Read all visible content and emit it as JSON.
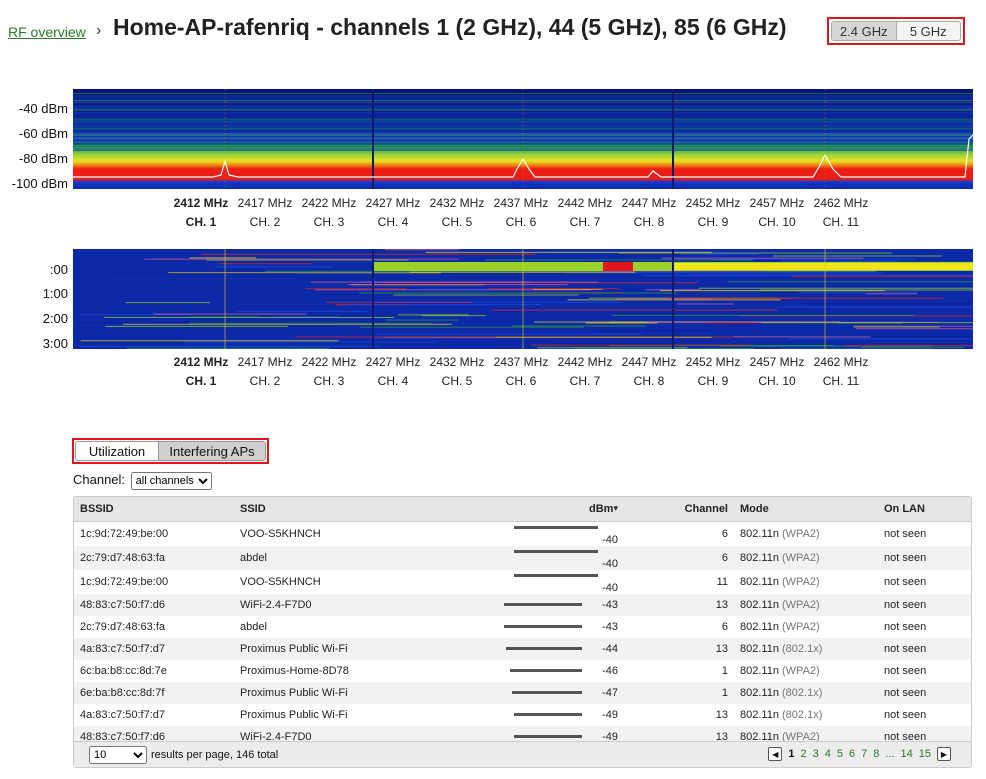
{
  "header": {
    "breadcrumb": "RF overview",
    "breadcrumb_sep": "›",
    "title": "Home-AP-rafenriq - channels 1 (2 GHz), 44 (5 GHz), 85 (6 GHz)",
    "band_buttons": [
      "2.4 GHz",
      "5 GHz"
    ]
  },
  "spectrum": {
    "dbm_labels": [
      "-40 dBm",
      "-60 dBm",
      "-80 dBm",
      "-100 dBm"
    ],
    "frequencies": [
      "2412 MHz",
      "2417 MHz",
      "2422 MHz",
      "2427 MHz",
      "2432 MHz",
      "2437 MHz",
      "2442 MHz",
      "2447 MHz",
      "2452 MHz",
      "2457 MHz",
      "2462 MHz"
    ],
    "channels": [
      "CH. 1",
      "CH. 2",
      "CH. 3",
      "CH. 4",
      "CH. 5",
      "CH. 6",
      "CH. 7",
      "CH. 8",
      "CH. 9",
      "CH. 10",
      "CH. 11"
    ]
  },
  "waterfall": {
    "time_labels": [
      ":00",
      "1:00",
      "2:00",
      "3:00"
    ]
  },
  "subtabs": [
    "Utilization",
    "Interfering APs"
  ],
  "filter": {
    "label": "Channel:",
    "value": "all channels"
  },
  "table": {
    "headers": {
      "bssid": "BSSID",
      "ssid": "SSID",
      "dbm": "dBm",
      "sort_arrow": "▾",
      "channel": "Channel",
      "mode": "Mode",
      "on_lan": "On LAN"
    },
    "rows": [
      {
        "bssid": "1c:9d:72:49:be:00",
        "ssid": "VOO-S5KHNCH",
        "dbm": "-40",
        "channel": "6",
        "mode": "802.11n",
        "sec": "(WPA2)",
        "on_lan": "not seen"
      },
      {
        "bssid": "2c:79:d7:48:63:fa",
        "ssid": "abdel",
        "dbm": "-40",
        "channel": "6",
        "mode": "802.11n",
        "sec": "(WPA2)",
        "on_lan": "not seen"
      },
      {
        "bssid": "1c:9d:72:49:be:00",
        "ssid": "VOO-S5KHNCH",
        "dbm": "-40",
        "channel": "11",
        "mode": "802.11n",
        "sec": "(WPA2)",
        "on_lan": "not seen"
      },
      {
        "bssid": "48:83:c7:50:f7:d6",
        "ssid": "WiFi-2.4-F7D0",
        "dbm": "-43",
        "channel": "13",
        "mode": "802.11n",
        "sec": "(WPA2)",
        "on_lan": "not seen"
      },
      {
        "bssid": "2c:79:d7:48:63:fa",
        "ssid": "abdel",
        "dbm": "-43",
        "channel": "6",
        "mode": "802.11n",
        "sec": "(WPA2)",
        "on_lan": "not seen"
      },
      {
        "bssid": "4a:83:c7:50:f7:d7",
        "ssid": "Proximus Public Wi-Fi",
        "dbm": "-44",
        "channel": "13",
        "mode": "802.11n",
        "sec": "(802.1x)",
        "on_lan": "not seen"
      },
      {
        "bssid": "6c:ba:b8:cc:8d:7e",
        "ssid": "Proximus-Home-8D78",
        "dbm": "-46",
        "channel": "1",
        "mode": "802.11n",
        "sec": "(WPA2)",
        "on_lan": "not seen"
      },
      {
        "bssid": "6e:ba:b8:cc:8d:7f",
        "ssid": "Proximus Public Wi-Fi",
        "dbm": "-47",
        "channel": "1",
        "mode": "802.11n",
        "sec": "(802.1x)",
        "on_lan": "not seen"
      },
      {
        "bssid": "4a:83:c7:50:f7:d7",
        "ssid": "Proximus Public Wi-Fi",
        "dbm": "-49",
        "channel": "13",
        "mode": "802.11n",
        "sec": "(802.1x)",
        "on_lan": "not seen"
      },
      {
        "bssid": "48:83:c7:50:f7:d6",
        "ssid": "WiFi-2.4-F7D0",
        "dbm": "-49",
        "channel": "13",
        "mode": "802.11n",
        "sec": "(WPA2)",
        "on_lan": "not seen"
      }
    ]
  },
  "pagination": {
    "page_size": "10",
    "summary": "results per page, 146 total",
    "prev_icon": "◀",
    "next_icon": "▶",
    "pages": [
      "1",
      "2",
      "3",
      "4",
      "5",
      "6",
      "7",
      "8",
      "...",
      "14",
      "15"
    ],
    "current": "1"
  },
  "colors": {
    "highlight_border": "#e0161e",
    "link": "#2a7a2a",
    "spectrum_bg": "#0a1c8a"
  }
}
